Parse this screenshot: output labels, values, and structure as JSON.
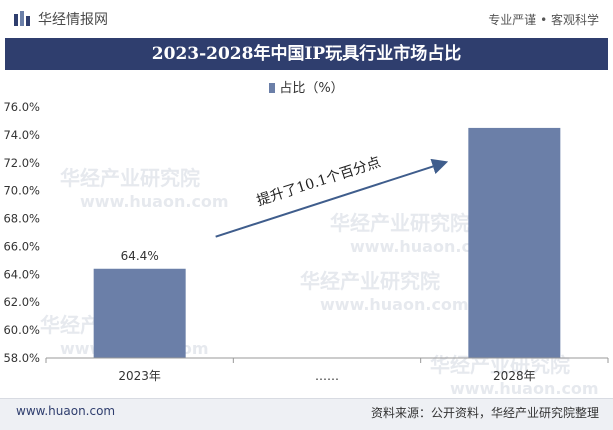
{
  "header": {
    "brand": "华经情报网",
    "tagline": "专业严谨 • 客观科学"
  },
  "title": "2023-2028年中国IP玩具行业市场占比",
  "watermarks": [
    "华经产业研究院",
    "www.huaon.com"
  ],
  "colors": {
    "bar": "#6b7fa8",
    "title_bg": "#2f3e6e",
    "arrow": "#3f5d8c"
  },
  "annotation": "提升了10.1个百分点",
  "footer": {
    "left": "www.huaon.com",
    "right": "资料来源：公开资料，华经产业研究院整理"
  },
  "chart_data": {
    "type": "bar",
    "categories": [
      "2023年",
      "……",
      "2028年"
    ],
    "series": [
      {
        "name": "占比（%）",
        "values": [
          64.4,
          null,
          74.5
        ]
      }
    ],
    "data_labels": [
      "64.4%",
      "",
      ""
    ],
    "ylim": [
      58.0,
      76.0
    ],
    "yticks": [
      "58.0%",
      "60.0%",
      "62.0%",
      "64.0%",
      "66.0%",
      "68.0%",
      "70.0%",
      "72.0%",
      "74.0%",
      "76.0%"
    ],
    "legend": "top-center",
    "grid": false
  }
}
